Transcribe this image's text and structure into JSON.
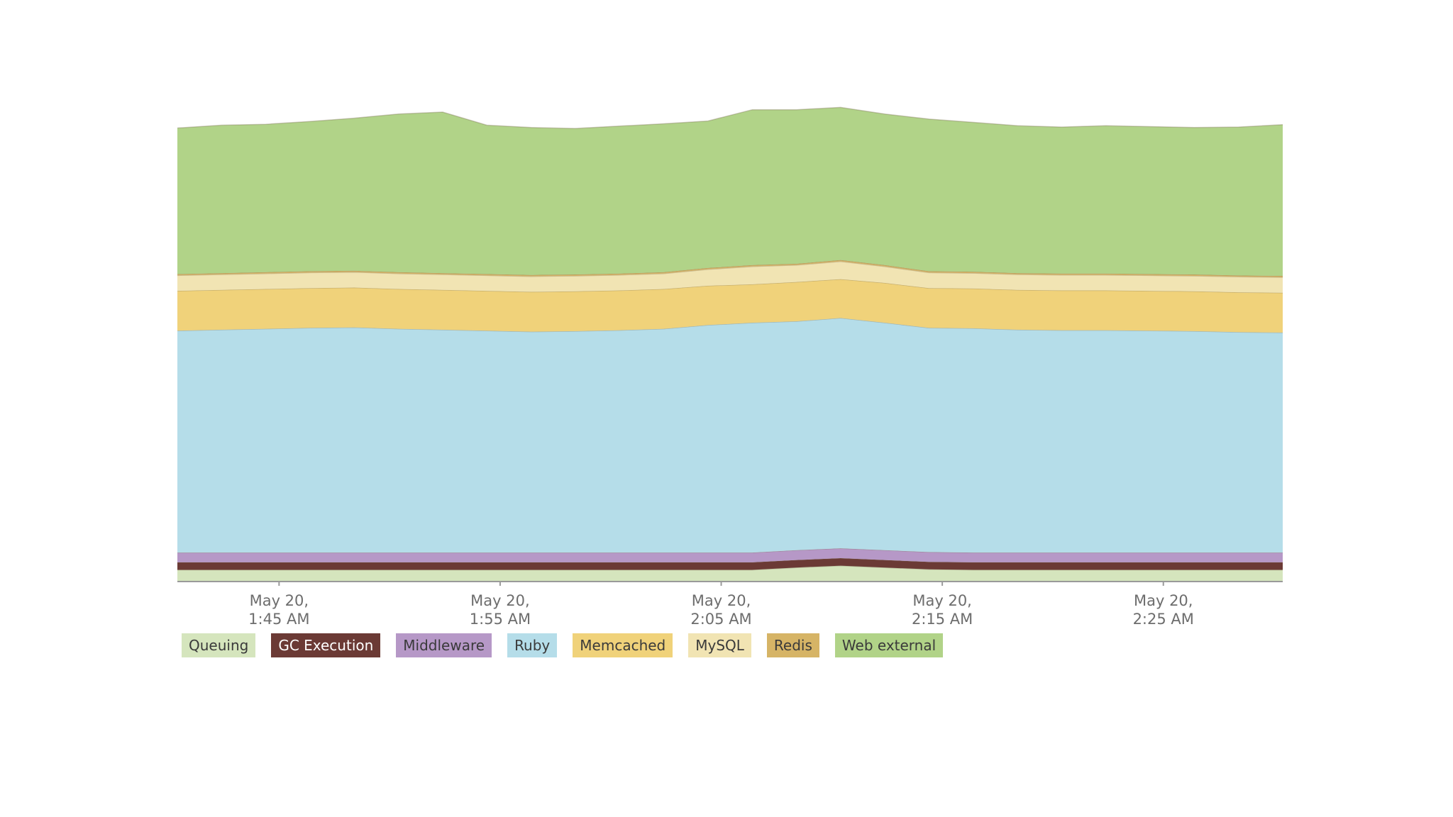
{
  "chart_data": {
    "type": "area",
    "stacked": true,
    "title": "",
    "xlabel": "",
    "ylabel": "",
    "grid": false,
    "legend_position": "bottom-left",
    "x": [
      0,
      1,
      2,
      3,
      4,
      5,
      6,
      7,
      8,
      9,
      10,
      11,
      12,
      13,
      14,
      15,
      16,
      17,
      18,
      19,
      20,
      21,
      22,
      23,
      24,
      25
    ],
    "x_ticks": [
      {
        "x": 2.3,
        "line1": "May 20,",
        "line2": "1:45 AM"
      },
      {
        "x": 7.3,
        "line1": "May 20,",
        "line2": "1:55 AM"
      },
      {
        "x": 12.3,
        "line1": "May 20,",
        "line2": "2:05 AM"
      },
      {
        "x": 17.3,
        "line1": "May 20,",
        "line2": "2:15 AM"
      },
      {
        "x": 22.3,
        "line1": "May 20,",
        "line2": "2:25 AM"
      }
    ],
    "ylim": [
      0,
      100
    ],
    "series": [
      {
        "name": "Queuing",
        "color": "#d5e5bd",
        "text_color": "#3a3a3a",
        "values": [
          2.5,
          2.5,
          2.5,
          2.5,
          2.5,
          2.5,
          2.5,
          2.5,
          2.5,
          2.5,
          2.5,
          2.5,
          2.5,
          2.5,
          3.0,
          3.4,
          3.0,
          2.6,
          2.5,
          2.5,
          2.5,
          2.5,
          2.5,
          2.5,
          2.5,
          2.5
        ]
      },
      {
        "name": "GC Execution",
        "color": "#6b3a35",
        "text_color": "#ffffff",
        "values": [
          1.6,
          1.6,
          1.6,
          1.6,
          1.6,
          1.6,
          1.6,
          1.6,
          1.6,
          1.6,
          1.6,
          1.6,
          1.6,
          1.6,
          1.6,
          1.6,
          1.6,
          1.6,
          1.6,
          1.6,
          1.6,
          1.6,
          1.6,
          1.6,
          1.6,
          1.6
        ]
      },
      {
        "name": "Middleware",
        "color": "#b698c7",
        "text_color": "#3a3a3a",
        "values": [
          2.1,
          2.1,
          2.1,
          2.1,
          2.1,
          2.1,
          2.1,
          2.1,
          2.1,
          2.1,
          2.1,
          2.1,
          2.1,
          2.1,
          2.1,
          2.1,
          2.1,
          2.1,
          2.1,
          2.1,
          2.1,
          2.1,
          2.1,
          2.1,
          2.1,
          2.1
        ]
      },
      {
        "name": "Ruby",
        "color": "#b5dde9",
        "text_color": "#3a3a3a",
        "values": [
          47.4,
          47.6,
          47.8,
          48.0,
          48.1,
          47.8,
          47.6,
          47.4,
          47.2,
          47.3,
          47.5,
          47.8,
          48.6,
          49.1,
          48.9,
          49.2,
          48.6,
          47.9,
          47.9,
          47.6,
          47.5,
          47.5,
          47.4,
          47.3,
          47.1,
          47.0
        ]
      },
      {
        "name": "Memcached",
        "color": "#f0d27a",
        "text_color": "#3a3a3a",
        "values": [
          8.5,
          8.5,
          8.5,
          8.5,
          8.5,
          8.5,
          8.5,
          8.5,
          8.5,
          8.5,
          8.5,
          8.5,
          8.4,
          8.2,
          8.4,
          8.3,
          8.5,
          8.5,
          8.5,
          8.5,
          8.5,
          8.5,
          8.5,
          8.5,
          8.5,
          8.5
        ]
      },
      {
        "name": "MySQL",
        "color": "#f1e4b3",
        "text_color": "#3a3a3a",
        "values": [
          3.3,
          3.3,
          3.3,
          3.3,
          3.3,
          3.3,
          3.3,
          3.3,
          3.3,
          3.3,
          3.3,
          3.3,
          3.5,
          3.8,
          3.6,
          3.8,
          3.5,
          3.3,
          3.3,
          3.3,
          3.3,
          3.3,
          3.3,
          3.3,
          3.3,
          3.3
        ]
      },
      {
        "name": "Redis",
        "color": "#d6b466",
        "text_color": "#3a3a3a",
        "values": [
          0.3,
          0.3,
          0.3,
          0.3,
          0.3,
          0.3,
          0.3,
          0.3,
          0.3,
          0.3,
          0.3,
          0.3,
          0.3,
          0.3,
          0.3,
          0.3,
          0.3,
          0.3,
          0.3,
          0.3,
          0.3,
          0.3,
          0.3,
          0.3,
          0.3,
          0.3
        ]
      },
      {
        "name": "Web external",
        "color": "#b1d388",
        "text_color": "#3a3a3a",
        "values": [
          31.2,
          31.6,
          31.6,
          32.0,
          32.6,
          33.8,
          34.4,
          31.8,
          31.5,
          31.2,
          31.5,
          31.7,
          31.4,
          33.2,
          32.9,
          32.6,
          32.3,
          32.5,
          31.9,
          31.5,
          31.3,
          31.6,
          31.5,
          31.4,
          31.7,
          32.3
        ]
      }
    ]
  }
}
